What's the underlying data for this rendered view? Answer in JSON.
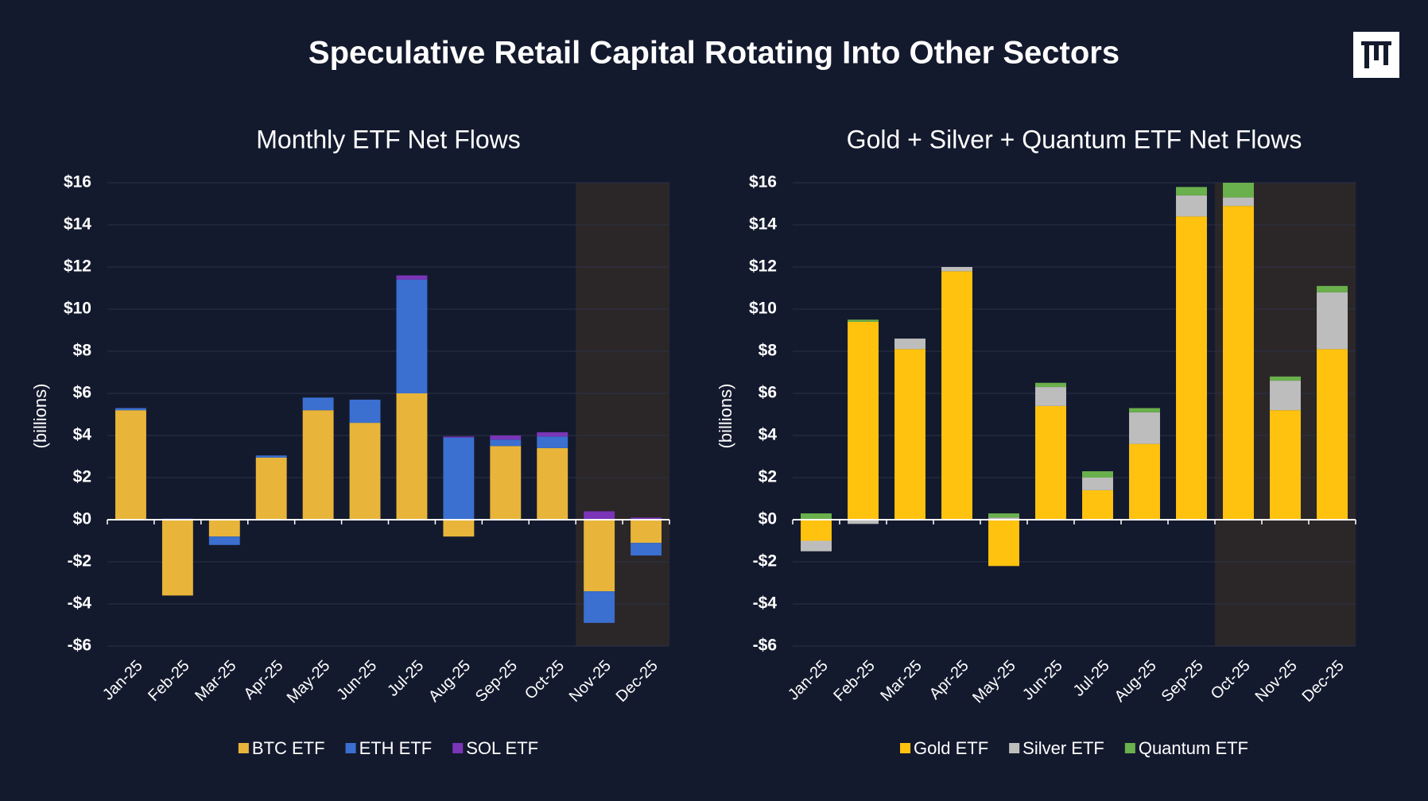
{
  "title": "Speculative Retail Capital Rotating Into Other Sectors",
  "chart_data": [
    {
      "type": "bar",
      "stacked": true,
      "title": "Monthly ETF Net Flows",
      "y_label": "(billions)",
      "categories": [
        "Jan-25",
        "Feb-25",
        "Mar-25",
        "Apr-25",
        "May-25",
        "Jun-25",
        "Jul-25",
        "Aug-25",
        "Sep-25",
        "Oct-25",
        "Nov-25",
        "Dec-25"
      ],
      "series": [
        {
          "name": "BTC ETF",
          "color": "#e8b53a",
          "values": [
            5.2,
            -3.6,
            -0.8,
            2.95,
            5.2,
            4.6,
            6.0,
            -0.8,
            3.5,
            3.4,
            -3.4,
            -1.1
          ]
        },
        {
          "name": "ETH ETF",
          "color": "#3b6fd0",
          "values": [
            0.1,
            0.05,
            -0.4,
            0.1,
            0.6,
            1.1,
            5.4,
            3.9,
            0.3,
            0.55,
            -1.5,
            -0.6
          ]
        },
        {
          "name": "SOL ETF",
          "color": "#7a35b8",
          "values": [
            0,
            0,
            0,
            0,
            0,
            0,
            0.2,
            0.05,
            0.2,
            0.2,
            0.4,
            0.1
          ]
        }
      ],
      "ylim": [
        -6,
        16
      ],
      "yticks": [
        {
          "value": -6,
          "label": "-$6"
        },
        {
          "value": -4,
          "label": "-$4"
        },
        {
          "value": -2,
          "label": "-$2"
        },
        {
          "value": 0,
          "label": "$0"
        },
        {
          "value": 2,
          "label": "$2"
        },
        {
          "value": 4,
          "label": "$4"
        },
        {
          "value": 6,
          "label": "$6"
        },
        {
          "value": 8,
          "label": "$8"
        },
        {
          "value": 10,
          "label": "$10"
        },
        {
          "value": 12,
          "label": "$12"
        },
        {
          "value": 14,
          "label": "$14"
        },
        {
          "value": 16,
          "label": "$16"
        }
      ],
      "grid": true,
      "shade_from_index": 10,
      "legend": "bottom"
    },
    {
      "type": "bar",
      "stacked": true,
      "title": "Gold + Silver + Quantum ETF Net Flows",
      "y_label": "(billions)",
      "categories": [
        "Jan-25",
        "Feb-25",
        "Mar-25",
        "Apr-25",
        "May-25",
        "Jun-25",
        "Jul-25",
        "Aug-25",
        "Sep-25",
        "Oct-25",
        "Nov-25",
        "Dec-25"
      ],
      "series": [
        {
          "name": "Gold ETF",
          "color": "#ffc20e",
          "values": [
            -1.0,
            9.4,
            8.1,
            11.8,
            -2.2,
            5.4,
            1.4,
            3.6,
            14.4,
            14.9,
            5.2,
            8.1
          ]
        },
        {
          "name": "Silver ETF",
          "color": "#bdbdbd",
          "values": [
            -0.5,
            -0.2,
            0.5,
            0.2,
            0.1,
            0.9,
            0.6,
            1.5,
            1.0,
            0.4,
            1.4,
            2.7
          ]
        },
        {
          "name": "Quantum ETF",
          "color": "#6ab04c",
          "values": [
            0.3,
            0.1,
            0,
            0,
            0.2,
            0.2,
            0.3,
            0.2,
            0.4,
            0.7,
            0.2,
            0.3
          ]
        }
      ],
      "ylim": [
        -6,
        16
      ],
      "yticks": [
        {
          "value": -6,
          "label": "-$6"
        },
        {
          "value": -4,
          "label": "-$4"
        },
        {
          "value": -2,
          "label": "-$2"
        },
        {
          "value": 0,
          "label": "$0"
        },
        {
          "value": 2,
          "label": "$2"
        },
        {
          "value": 4,
          "label": "$4"
        },
        {
          "value": 6,
          "label": "$6"
        },
        {
          "value": 8,
          "label": "$8"
        },
        {
          "value": 10,
          "label": "$10"
        },
        {
          "value": 12,
          "label": "$12"
        },
        {
          "value": 14,
          "label": "$14"
        },
        {
          "value": 16,
          "label": "$16"
        }
      ],
      "grid": true,
      "shade_from_index": 9,
      "legend": "bottom"
    }
  ]
}
